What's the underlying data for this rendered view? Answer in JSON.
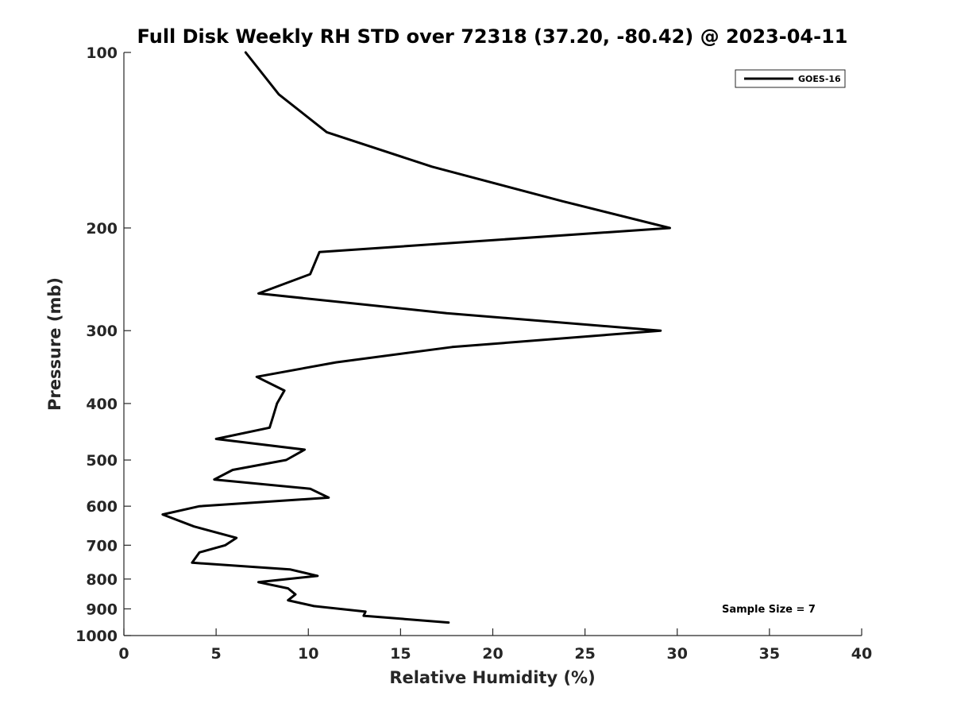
{
  "chart_data": {
    "type": "line",
    "title": "Full Disk Weekly RH STD over 72318 (37.20, -80.42) @ 2023-04-11",
    "xlabel": "Relative Humidity (%)",
    "ylabel": "Pressure (mb)",
    "xlim": [
      0,
      40
    ],
    "ylim": [
      100,
      1000
    ],
    "yscale": "log",
    "y_reversed": true,
    "grid": false,
    "legend_position": "top-right",
    "x_ticks": [
      0,
      5,
      10,
      15,
      20,
      25,
      30,
      35,
      40
    ],
    "x_tick_labels": [
      "0",
      "5",
      "10",
      "15",
      "20",
      "25",
      "30",
      "35",
      "40"
    ],
    "y_ticks": [
      100,
      200,
      300,
      400,
      500,
      600,
      700,
      800,
      900,
      1000
    ],
    "y_tick_labels": [
      "100",
      "200",
      "300",
      "400",
      "500",
      "600",
      "700",
      "800",
      "900",
      "1000"
    ],
    "series": [
      {
        "name": "GOES-16",
        "color": "#000000",
        "x": [
          6.6,
          8.4,
          11.0,
          16.7,
          23.8,
          29.6,
          10.6,
          10.1,
          7.3,
          17.5,
          29.1,
          17.8,
          11.5,
          7.2,
          8.7,
          8.3,
          8.1,
          7.9,
          5.0,
          9.8,
          8.8,
          5.9,
          4.9,
          10.1,
          11.1,
          4.1,
          2.1,
          3.8,
          6.1,
          5.5,
          4.1,
          3.7,
          9.0,
          10.5,
          7.3,
          8.9,
          9.3,
          8.9,
          10.3,
          13.1,
          13.0,
          17.6
        ],
        "y": [
          100,
          118,
          137,
          157,
          180,
          200,
          220,
          240,
          259,
          280,
          300,
          320,
          340,
          360,
          380,
          400,
          420,
          440,
          460,
          480,
          500,
          520,
          540,
          560,
          580,
          600,
          620,
          650,
          680,
          700,
          720,
          750,
          770,
          790,
          810,
          830,
          850,
          870,
          890,
          910,
          925,
          950
        ]
      }
    ],
    "annotations": [
      "Sample Size = 7"
    ]
  }
}
